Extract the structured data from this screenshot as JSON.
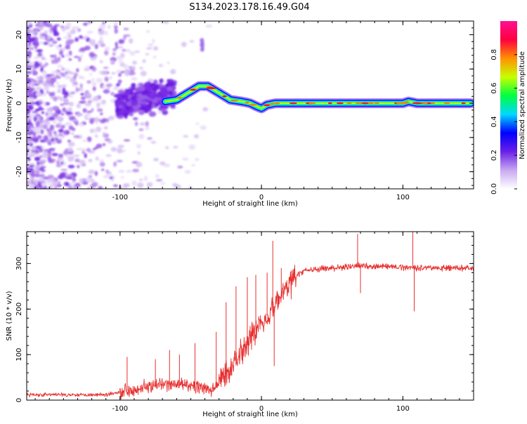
{
  "title": "S134.2023.178.16.49.G04",
  "chart_data": [
    {
      "type": "heatmap",
      "name": "spectrogram",
      "xlabel": "Height of straight line (km)",
      "ylabel": "Frequency (Hz)",
      "xlim": [
        -166,
        150
      ],
      "ylim": [
        -25,
        24
      ],
      "xticks": [
        -100,
        0,
        100
      ],
      "xtick_labels": [
        "-100",
        "0",
        "100"
      ],
      "yticks": [
        -20,
        -10,
        0,
        10,
        20
      ],
      "ytick_labels": [
        "-20",
        "-10",
        "0",
        "10",
        "20"
      ],
      "ridge": {
        "x": [
          -68,
          -60,
          -52,
          -44,
          -38,
          -30,
          -22,
          -14,
          -8,
          -3,
          0,
          4,
          10,
          20,
          40,
          60,
          80,
          100,
          104,
          110,
          130,
          148
        ],
        "y": [
          0.5,
          1,
          3,
          5,
          5,
          3,
          1,
          0.5,
          0,
          -1,
          -1.5,
          -0.5,
          0,
          0,
          0,
          0,
          0,
          0,
          0.5,
          0,
          0,
          0
        ]
      },
      "colorbar": {
        "label": "Normalized spectral amplitude",
        "range": [
          0,
          1
        ],
        "ticks": [
          0.0,
          0.2,
          0.4,
          0.6,
          0.8
        ],
        "tick_labels": [
          "0.0",
          "0.2",
          "0.4",
          "0.6",
          "0.8"
        ],
        "colors": [
          "#ffffff",
          "#c8a8f0",
          "#6a20e8",
          "#0000ff",
          "#00d8ff",
          "#00ff40",
          "#c8ff00",
          "#ff9000",
          "#ff0040",
          "#ff1090"
        ]
      }
    },
    {
      "type": "line",
      "name": "snr",
      "xlabel": "Height of straight line (km)",
      "ylabel": "SNR (10 * v/v)",
      "xlim": [
        -166,
        150
      ],
      "ylim": [
        0,
        370
      ],
      "xticks": [
        -100,
        0,
        100
      ],
      "xtick_labels": [
        "-100",
        "0",
        "100"
      ],
      "yticks": [
        0,
        100,
        200,
        300
      ],
      "ytick_labels": [
        "0",
        "100",
        "200",
        "300"
      ],
      "color": "#e83030",
      "trend": {
        "x": [
          -166,
          -110,
          -100,
          -80,
          -60,
          -45,
          -35,
          -20,
          -10,
          0,
          10,
          20,
          30,
          50,
          70,
          100,
          130,
          150
        ],
        "y": [
          12,
          12,
          18,
          30,
          35,
          30,
          20,
          80,
          130,
          170,
          210,
          260,
          285,
          290,
          295,
          292,
          290,
          290
        ]
      },
      "spikes": [
        {
          "x": -95,
          "y": 95
        },
        {
          "x": -75,
          "y": 90
        },
        {
          "x": -65,
          "y": 110
        },
        {
          "x": -58,
          "y": 100
        },
        {
          "x": -47,
          "y": 125
        },
        {
          "x": -32,
          "y": 150
        },
        {
          "x": -25,
          "y": 215
        },
        {
          "x": -18,
          "y": 250
        },
        {
          "x": -10,
          "y": 270
        },
        {
          "x": -4,
          "y": 275
        },
        {
          "x": 4,
          "y": 280
        },
        {
          "x": 8,
          "y": 350
        },
        {
          "x": 9,
          "y": 75
        },
        {
          "x": 14,
          "y": 290
        },
        {
          "x": 68,
          "y": 365
        },
        {
          "x": 70,
          "y": 235
        },
        {
          "x": 107,
          "y": 370
        },
        {
          "x": 108,
          "y": 195
        }
      ]
    }
  ]
}
